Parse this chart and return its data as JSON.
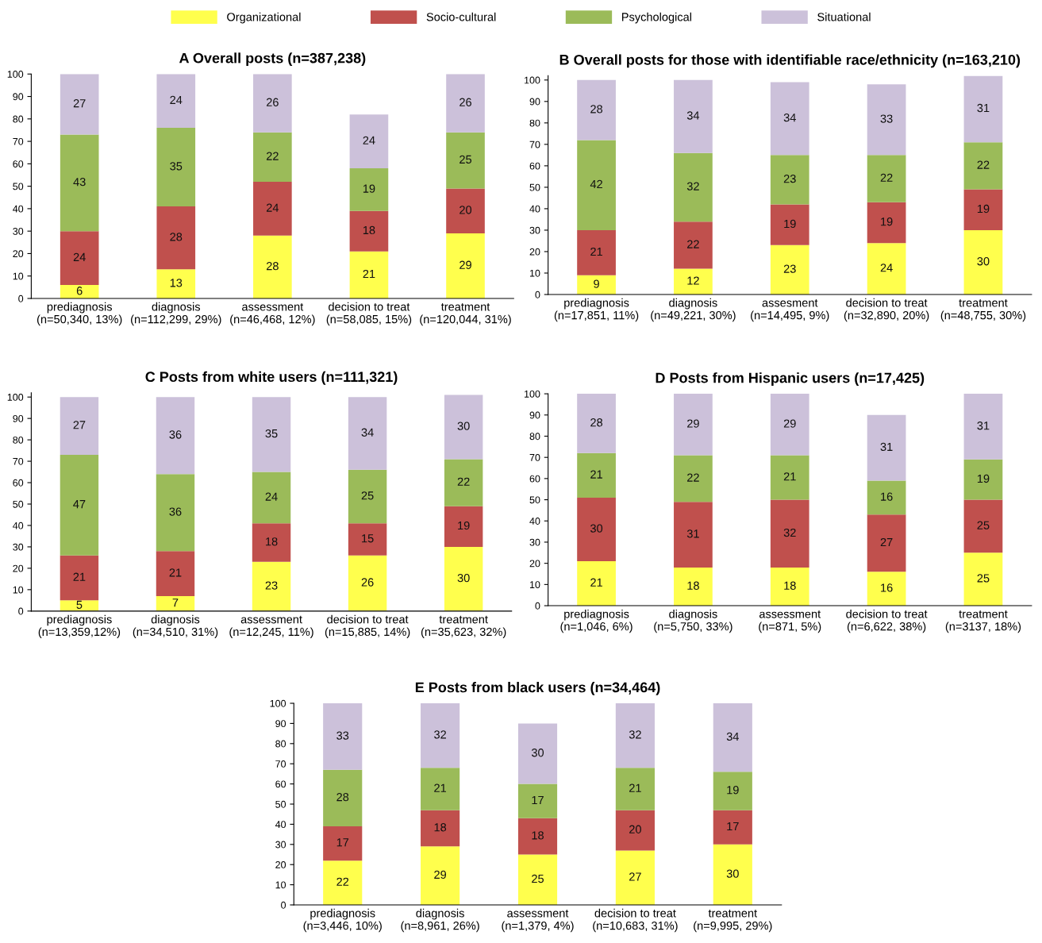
{
  "chart_data": [
    {
      "type": "bar",
      "stacked": true,
      "data_labels": true,
      "legend": "top",
      "grid": false,
      "title": "A Overall posts (n=387,238)",
      "ylim": [
        0,
        100
      ],
      "yticks": [
        0,
        10,
        20,
        30,
        40,
        50,
        60,
        70,
        80,
        90,
        100
      ],
      "categories": [
        "prediagnosis\n(n=50,340, 13%)",
        "diagnosis\n(n=112,299, 29%)",
        "assessment\n(n=46,468, 12%)",
        "decision to treat\n(n=58,085, 15%)",
        "treatment\n(n=120,044, 31%)"
      ],
      "series": [
        {
          "name": "Organizational",
          "color": "#ffff4d",
          "values": [
            6,
            13,
            28,
            21,
            29
          ]
        },
        {
          "name": "Socio-cultural",
          "color": "#c0504d",
          "values": [
            24,
            28,
            24,
            18,
            20
          ]
        },
        {
          "name": "Psychological",
          "color": "#9bbb59",
          "values": [
            43,
            35,
            22,
            19,
            25
          ]
        },
        {
          "name": "Situational",
          "color": "#ccc1da",
          "values": [
            27,
            24,
            26,
            24,
            26
          ]
        }
      ]
    },
    {
      "type": "bar",
      "stacked": true,
      "data_labels": true,
      "grid": false,
      "title": "B Overall posts for those with identifiable race/ethnicity (n=163,210)",
      "ylim": [
        0,
        102
      ],
      "yticks": [
        0,
        10,
        20,
        30,
        40,
        50,
        60,
        70,
        80,
        90,
        100
      ],
      "categories": [
        "prediagnosis\n(n=17,851, 11%)",
        "diagnosis\n(n=49,221, 30%)",
        "assesment\n(n=14,495, 9%)",
        "decision to treat\n(n=32,890, 20%)",
        "treatment\n(n=48,755, 30%)"
      ],
      "series": [
        {
          "color": "#ffff4d",
          "values": [
            9,
            12,
            23,
            24,
            30
          ]
        },
        {
          "color": "#c0504d",
          "values": [
            21,
            22,
            19,
            19,
            19
          ]
        },
        {
          "color": "#9bbb59",
          "values": [
            42,
            32,
            23,
            22,
            22
          ]
        },
        {
          "color": "#ccc1da",
          "values": [
            28,
            34,
            34,
            33,
            31
          ]
        }
      ]
    },
    {
      "type": "bar",
      "stacked": true,
      "data_labels": true,
      "grid": false,
      "title": "C Posts from white users (n=111,321)",
      "ylim": [
        0,
        102
      ],
      "yticks": [
        0,
        10,
        20,
        30,
        40,
        50,
        60,
        70,
        80,
        90,
        100
      ],
      "categories": [
        "prediagnosis\n(n=13,359,12%)",
        "diagnosis\n(n=34,510, 31%)",
        "assessment\n(n=12,245, 11%)",
        "decision to treat\n(n=15,885, 14%)",
        "treatment\n(n=35,623, 32%)"
      ],
      "series": [
        {
          "color": "#ffff4d",
          "values": [
            5,
            7,
            23,
            26,
            30
          ]
        },
        {
          "color": "#c0504d",
          "values": [
            21,
            21,
            18,
            15,
            19
          ]
        },
        {
          "color": "#9bbb59",
          "values": [
            47,
            36,
            24,
            25,
            22
          ]
        },
        {
          "color": "#ccc1da",
          "values": [
            27,
            36,
            35,
            34,
            30
          ]
        }
      ]
    },
    {
      "type": "bar",
      "stacked": true,
      "data_labels": true,
      "grid": false,
      "title": "D Posts from Hispanic users (n=17,425)",
      "ylim": [
        0,
        100
      ],
      "yticks": [
        0,
        10,
        20,
        30,
        40,
        50,
        60,
        70,
        80,
        90,
        100
      ],
      "categories": [
        "prediagnosis\n(n=1,046, 6%)",
        "diagnosis\n(n=5,750, 33%)",
        "assessment\n(n=871, 5%)",
        "decision to treat\n(n=6,622, 38%)",
        "treatment\n(n=3137, 18%)"
      ],
      "series": [
        {
          "color": "#ffff4d",
          "values": [
            21,
            18,
            18,
            16,
            25
          ]
        },
        {
          "color": "#c0504d",
          "values": [
            30,
            31,
            32,
            27,
            25
          ]
        },
        {
          "color": "#9bbb59",
          "values": [
            21,
            22,
            21,
            16,
            19
          ]
        },
        {
          "color": "#ccc1da",
          "values": [
            28,
            29,
            29,
            31,
            31
          ]
        }
      ]
    },
    {
      "type": "bar",
      "stacked": true,
      "data_labels": true,
      "grid": false,
      "title": "E Posts from black users (n=34,464)",
      "ylim": [
        0,
        100
      ],
      "yticks": [
        0,
        10,
        20,
        30,
        40,
        50,
        60,
        70,
        80,
        90,
        100
      ],
      "categories": [
        "prediagnosis\n(n=3,446, 10%)",
        "diagnosis\n(n=8,961, 26%)",
        "assessment\n(n=1,379, 4%)",
        "decision to treat\n(n=10,683, 31%)",
        "treatment\n(n=9,995, 29%)"
      ],
      "series": [
        {
          "color": "#ffff4d",
          "values": [
            22,
            29,
            25,
            27,
            30
          ]
        },
        {
          "color": "#c0504d",
          "values": [
            17,
            18,
            18,
            20,
            17
          ]
        },
        {
          "color": "#9bbb59",
          "values": [
            28,
            21,
            17,
            21,
            19
          ]
        },
        {
          "color": "#ccc1da",
          "values": [
            33,
            32,
            30,
            32,
            34
          ]
        }
      ]
    }
  ]
}
